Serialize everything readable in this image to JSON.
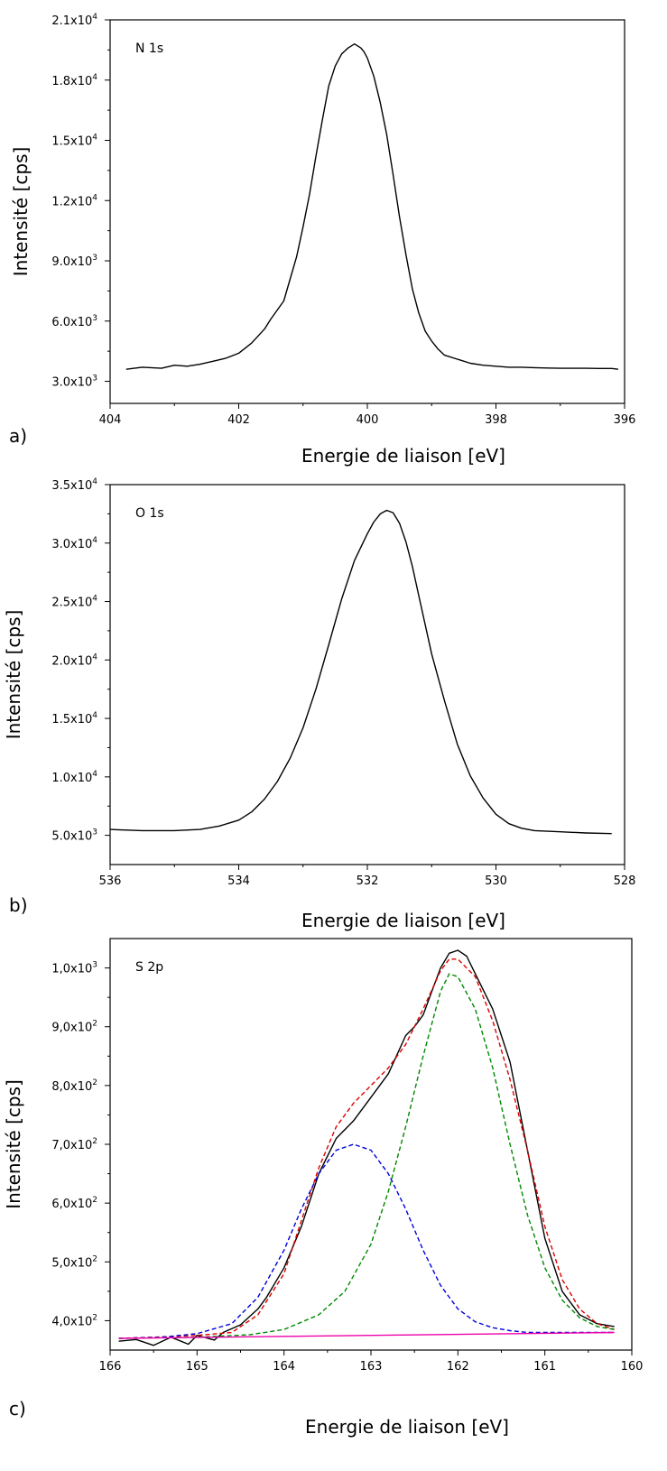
{
  "chart_data": [
    {
      "type": "line",
      "panel_label": "a)",
      "peak_label": "N 1s",
      "xlabel": "Energie de liaison [eV]",
      "ylabel": "Intensité [cps]",
      "xlim": [
        404,
        396
      ],
      "ylim": [
        1900,
        21000
      ],
      "x_ticks": [
        "404",
        "402",
        "400",
        "398",
        "396"
      ],
      "x_tick_values": [
        404,
        402,
        400,
        398,
        396
      ],
      "y_ticks": [
        {
          "value": 3000,
          "mantissa": "3.0x10",
          "exp": "3"
        },
        {
          "value": 6000,
          "mantissa": "6.0x10",
          "exp": "3"
        },
        {
          "value": 9000,
          "mantissa": "9.0x10",
          "exp": "3"
        },
        {
          "value": 12000,
          "mantissa": "1.2x10",
          "exp": "4"
        },
        {
          "value": 15000,
          "mantissa": "1.5x10",
          "exp": "4"
        },
        {
          "value": 18000,
          "mantissa": "1.8x10",
          "exp": "4"
        },
        {
          "value": 21000,
          "mantissa": "2.1x10",
          "exp": "4"
        }
      ],
      "series": [
        {
          "color": "#000000",
          "dash": false,
          "x": [
            403.75,
            403.5,
            403.2,
            403.0,
            402.8,
            402.6,
            402.4,
            402.2,
            402.0,
            401.8,
            401.6,
            401.5,
            401.3,
            401.2,
            401.1,
            401.0,
            400.9,
            400.8,
            400.7,
            400.6,
            400.5,
            400.4,
            400.3,
            400.2,
            400.1,
            400.05,
            400.0,
            399.9,
            399.8,
            399.7,
            399.6,
            399.5,
            399.4,
            399.3,
            399.2,
            399.1,
            399.0,
            398.9,
            398.8,
            398.6,
            398.4,
            398.2,
            398.0,
            397.8,
            397.6,
            397.4,
            397.2,
            397.0,
            396.8,
            396.6,
            396.4,
            396.2,
            396.1
          ],
          "y": [
            3600,
            3700,
            3650,
            3800,
            3750,
            3850,
            4000,
            4150,
            4400,
            4900,
            5600,
            6100,
            7000,
            8100,
            9200,
            10700,
            12300,
            14200,
            16000,
            17700,
            18700,
            19300,
            19600,
            19800,
            19600,
            19400,
            19100,
            18200,
            16900,
            15300,
            13300,
            11200,
            9300,
            7600,
            6400,
            5500,
            5000,
            4600,
            4300,
            4100,
            3900,
            3800,
            3750,
            3700,
            3700,
            3680,
            3660,
            3650,
            3650,
            3650,
            3640,
            3640,
            3600
          ]
        }
      ]
    },
    {
      "type": "line",
      "panel_label": "b)",
      "peak_label": "O 1s",
      "xlabel": "Energie de liaison [eV]",
      "ylabel": "Intensité [cps]",
      "xlim": [
        536,
        528
      ],
      "ylim": [
        2500,
        35000
      ],
      "x_ticks": [
        "536",
        "534",
        "532",
        "530",
        "528"
      ],
      "x_tick_values": [
        536,
        534,
        532,
        530,
        528
      ],
      "y_ticks": [
        {
          "value": 5000,
          "mantissa": "5.0x10",
          "exp": "3"
        },
        {
          "value": 10000,
          "mantissa": "1.0x10",
          "exp": "4"
        },
        {
          "value": 15000,
          "mantissa": "1.5x10",
          "exp": "4"
        },
        {
          "value": 20000,
          "mantissa": "2.0x10",
          "exp": "4"
        },
        {
          "value": 25000,
          "mantissa": "2.5x10",
          "exp": "4"
        },
        {
          "value": 30000,
          "mantissa": "3.0x10",
          "exp": "4"
        },
        {
          "value": 35000,
          "mantissa": "3.5x10",
          "exp": "4"
        }
      ],
      "series": [
        {
          "color": "#000000",
          "dash": false,
          "x": [
            536.0,
            535.5,
            535.0,
            534.6,
            534.3,
            534.0,
            533.8,
            533.6,
            533.4,
            533.2,
            533.0,
            532.8,
            532.6,
            532.4,
            532.2,
            532.0,
            531.9,
            531.8,
            531.7,
            531.6,
            531.5,
            531.4,
            531.3,
            531.2,
            531.0,
            530.8,
            530.6,
            530.4,
            530.2,
            530.0,
            529.8,
            529.6,
            529.4,
            529.0,
            528.6,
            528.2
          ],
          "y": [
            5500,
            5400,
            5400,
            5500,
            5800,
            6300,
            7000,
            8100,
            9600,
            11600,
            14200,
            17500,
            21300,
            25200,
            28500,
            30800,
            31800,
            32500,
            32800,
            32600,
            31700,
            30100,
            28000,
            25500,
            20500,
            16500,
            12800,
            10100,
            8200,
            6800,
            6000,
            5600,
            5400,
            5300,
            5200,
            5150
          ]
        }
      ]
    },
    {
      "type": "line",
      "panel_label": "c)",
      "peak_label": "S 2p",
      "xlabel": "Energie de liaison [eV]",
      "ylabel": "Intensité [cps]",
      "xlim": [
        166,
        160
      ],
      "ylim": [
        350,
        1050
      ],
      "x_ticks": [
        "166",
        "165",
        "164",
        "163",
        "162",
        "161",
        "160"
      ],
      "x_tick_values": [
        166,
        165,
        164,
        163,
        162,
        161,
        160
      ],
      "y_ticks": [
        {
          "value": 400,
          "mantissa": "4,0x10",
          "exp": "2"
        },
        {
          "value": 500,
          "mantissa": "5,0x10",
          "exp": "2"
        },
        {
          "value": 600,
          "mantissa": "6,0x10",
          "exp": "2"
        },
        {
          "value": 700,
          "mantissa": "7,0x10",
          "exp": "2"
        },
        {
          "value": 800,
          "mantissa": "8,0x10",
          "exp": "2"
        },
        {
          "value": 900,
          "mantissa": "9,0x10",
          "exp": "2"
        },
        {
          "value": 1000,
          "mantissa": "1,0x10",
          "exp": "3"
        }
      ],
      "series": [
        {
          "color": "#000000",
          "dash": false,
          "x": [
            165.9,
            165.7,
            165.5,
            165.3,
            165.1,
            165.0,
            164.8,
            164.7,
            164.5,
            164.3,
            164.2,
            164.0,
            163.8,
            163.6,
            163.4,
            163.2,
            163.0,
            162.8,
            162.6,
            162.5,
            162.4,
            162.3,
            162.2,
            162.1,
            162.0,
            161.9,
            161.8,
            161.6,
            161.4,
            161.2,
            161.0,
            160.8,
            160.6,
            160.4,
            160.2
          ],
          "y": [
            365,
            368,
            358,
            372,
            360,
            375,
            367,
            380,
            393,
            420,
            440,
            490,
            560,
            650,
            710,
            740,
            780,
            820,
            885,
            900,
            920,
            960,
            1000,
            1025,
            1030,
            1020,
            990,
            930,
            840,
            690,
            540,
            450,
            410,
            395,
            390
          ]
        },
        {
          "color": "#dd0000",
          "dash": true,
          "x": [
            165.9,
            165.5,
            165.0,
            164.6,
            164.3,
            164.0,
            163.8,
            163.6,
            163.4,
            163.2,
            163.0,
            162.8,
            162.6,
            162.4,
            162.2,
            162.1,
            162.0,
            161.8,
            161.6,
            161.4,
            161.2,
            161.0,
            160.8,
            160.6,
            160.4,
            160.2
          ],
          "y": [
            370,
            372,
            375,
            380,
            410,
            480,
            570,
            660,
            730,
            770,
            800,
            830,
            870,
            930,
            995,
            1015,
            1015,
            985,
            910,
            810,
            690,
            560,
            470,
            420,
            395,
            385
          ]
        },
        {
          "color": "#0000dd",
          "dash": true,
          "x": [
            165.9,
            165.4,
            165.0,
            164.6,
            164.3,
            164.0,
            163.8,
            163.6,
            163.4,
            163.2,
            163.0,
            162.8,
            162.6,
            162.4,
            162.2,
            162.0,
            161.8,
            161.6,
            161.4,
            161.2,
            160.8,
            160.2
          ],
          "y": [
            370,
            372,
            378,
            395,
            440,
            520,
            590,
            650,
            690,
            700,
            690,
            650,
            590,
            520,
            460,
            420,
            398,
            388,
            383,
            380,
            380,
            380
          ]
        },
        {
          "color": "#008800",
          "dash": true,
          "x": [
            165.9,
            165.0,
            164.4,
            164.0,
            163.6,
            163.3,
            163.0,
            162.8,
            162.6,
            162.4,
            162.2,
            162.1,
            162.0,
            161.8,
            161.6,
            161.4,
            161.2,
            161.0,
            160.8,
            160.6,
            160.4,
            160.2
          ],
          "y": [
            370,
            372,
            376,
            385,
            410,
            450,
            530,
            620,
            730,
            850,
            960,
            990,
            985,
            930,
            830,
            700,
            580,
            490,
            435,
            405,
            390,
            385
          ]
        },
        {
          "color": "#ee00aa",
          "dash": false,
          "x": [
            165.9,
            160.2
          ],
          "y": [
            370,
            380
          ]
        }
      ]
    }
  ]
}
